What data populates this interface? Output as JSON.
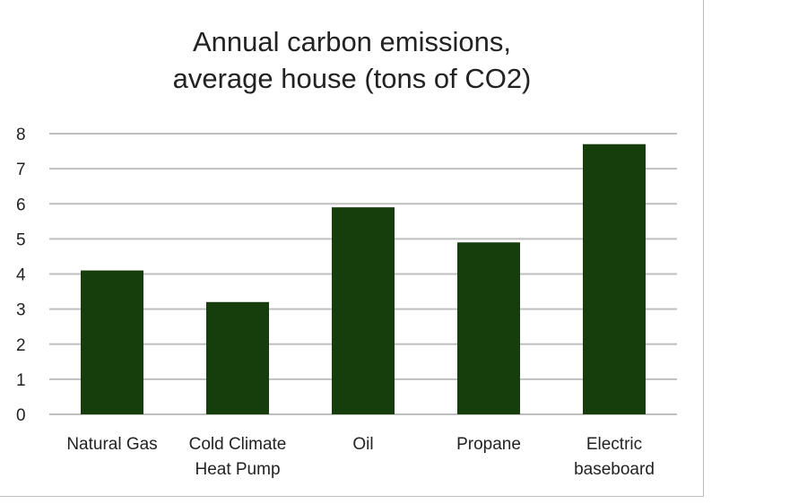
{
  "chart_data": {
    "type": "bar",
    "title": "Annual carbon emissions, average house (tons of CO2)",
    "title_lines": [
      "Annual carbon emissions,",
      "average house (tons of CO2)"
    ],
    "categories": [
      [
        "Natural Gas"
      ],
      [
        "Cold Climate",
        "Heat Pump"
      ],
      [
        "Oil"
      ],
      [
        "Propane"
      ],
      [
        "Electric",
        "baseboard"
      ]
    ],
    "values": [
      4.1,
      3.2,
      5.9,
      4.9,
      7.7
    ],
    "xlabel": "",
    "ylabel": "",
    "ylim": [
      0,
      8
    ],
    "yticks": [
      "0",
      "1",
      "2",
      "3",
      "4",
      "5",
      "6",
      "7",
      "8"
    ],
    "grid": true,
    "bar_color": "#163d0c",
    "grid_color": "#bfbfbf"
  }
}
